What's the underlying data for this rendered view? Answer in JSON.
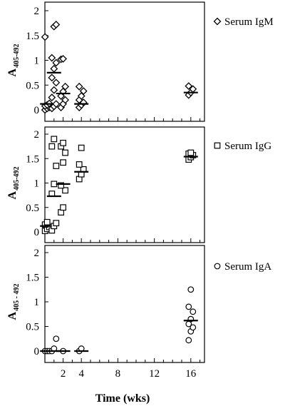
{
  "chart_data": [
    {
      "type": "scatter",
      "legend": "Serum IgM",
      "marker": "diamond",
      "ylabel_main": "A",
      "ylabel_sub": "405-492",
      "ylim": [
        0,
        2
      ],
      "xlim": [
        0,
        17.5
      ],
      "y_ticks": [
        "0",
        "0.5",
        "1",
        "1.5",
        "2"
      ],
      "groups": [
        {
          "x": 0.25,
          "y": [
            0.0,
            0.03,
            0.05,
            0.08,
            0.1,
            0.13,
            1.47
          ],
          "mean": 0.12
        },
        {
          "x": 1.0,
          "y": [
            0.03,
            0.07,
            0.12,
            0.25,
            0.4,
            0.55,
            0.65,
            0.83,
            0.95,
            1.05,
            1.68,
            1.72
          ],
          "mean": 0.75
        },
        {
          "x": 2.0,
          "y": [
            0.05,
            0.12,
            0.2,
            0.28,
            0.37,
            0.47,
            1.02,
            1.03
          ],
          "mean": 0.33
        },
        {
          "x": 4.0,
          "y": [
            0.05,
            0.1,
            0.15,
            0.2,
            0.28,
            0.38,
            0.47
          ],
          "mean": 0.12
        },
        {
          "x": 16.0,
          "y": [
            0.3,
            0.35,
            0.42,
            0.48
          ],
          "mean": 0.35
        }
      ],
      "legend_position": "right"
    },
    {
      "type": "scatter",
      "legend": "Serum IgG",
      "marker": "square",
      "ylabel_main": "A",
      "ylabel_sub": "405-492",
      "ylim": [
        0,
        2
      ],
      "xlim": [
        0,
        17.5
      ],
      "y_ticks": [
        "0",
        "0.5",
        "1",
        "1.5",
        "2"
      ],
      "groups": [
        {
          "x": 0.25,
          "y": [
            0.02,
            0.06,
            0.1,
            0.15,
            0.2
          ],
          "mean": 0.12
        },
        {
          "x": 1.0,
          "y": [
            0.03,
            0.12,
            0.18,
            0.78,
            0.98,
            1.35,
            1.75,
            1.9
          ],
          "mean": 0.73
        },
        {
          "x": 2.0,
          "y": [
            0.4,
            0.5,
            0.85,
            0.95,
            1.42,
            1.62,
            1.75,
            1.82
          ],
          "mean": 0.98
        },
        {
          "x": 4.0,
          "y": [
            1.08,
            1.18,
            1.28,
            1.38,
            1.72
          ],
          "mean": 1.23
        },
        {
          "x": 16.0,
          "y": [
            1.48,
            1.53,
            1.57,
            1.6,
            1.62
          ],
          "mean": 1.54
        }
      ],
      "legend_position": "right"
    },
    {
      "type": "scatter",
      "legend": "Serum IgA",
      "marker": "circle",
      "ylabel_main": "A",
      "ylabel_sub": "405 - 492",
      "ylim": [
        0,
        2
      ],
      "xlim": [
        0,
        17.5
      ],
      "y_ticks": [
        "0",
        "0.5",
        "1",
        "1.5",
        "2"
      ],
      "x_ticks": [
        "2",
        "4",
        "8",
        "12",
        "16"
      ],
      "x_tick_values": [
        2,
        4,
        8,
        12,
        16
      ],
      "xlabel": "Time (wks)",
      "groups": [
        {
          "x": 0.25,
          "y": [
            0.0,
            0.0,
            0.0
          ],
          "mean": 0.0
        },
        {
          "x": 1.0,
          "y": [
            0.0,
            0.05,
            0.25
          ],
          "mean": 0.0
        },
        {
          "x": 2.0,
          "y": [
            0.0
          ],
          "mean": 0.0
        },
        {
          "x": 4.0,
          "y": [
            0.0,
            0.05
          ],
          "mean": 0.0
        },
        {
          "x": 16.0,
          "y": [
            0.22,
            0.4,
            0.48,
            0.55,
            0.65,
            0.8,
            0.9,
            1.25
          ],
          "mean": 0.62
        }
      ],
      "legend_position": "right"
    }
  ]
}
